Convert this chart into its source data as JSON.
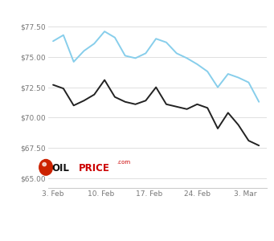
{
  "brent_x": [
    0,
    1,
    2,
    3,
    4,
    5,
    6,
    7,
    8,
    9,
    10,
    11,
    12,
    13,
    14,
    15,
    16,
    17,
    18,
    19,
    20
  ],
  "brent_y": [
    76.3,
    76.8,
    74.6,
    75.5,
    76.1,
    77.1,
    76.6,
    75.1,
    74.9,
    75.3,
    76.5,
    76.2,
    75.3,
    74.9,
    74.4,
    73.8,
    72.5,
    73.6,
    73.3,
    72.9,
    71.3
  ],
  "wti_x": [
    0,
    1,
    2,
    3,
    4,
    5,
    6,
    7,
    8,
    9,
    10,
    11,
    12,
    13,
    14,
    15,
    16,
    17,
    18,
    19,
    20
  ],
  "wti_y": [
    72.7,
    72.4,
    71.0,
    71.4,
    71.9,
    73.1,
    71.7,
    71.3,
    71.1,
    71.4,
    72.5,
    71.1,
    70.9,
    70.7,
    71.1,
    70.8,
    69.1,
    70.4,
    69.4,
    68.1,
    67.7
  ],
  "xtick_positions": [
    0,
    4.67,
    9.33,
    14,
    18.67
  ],
  "xtick_labels": [
    "3. Feb",
    "10. Feb",
    "17. Feb",
    "24. Feb",
    "3. Mar"
  ],
  "yticks": [
    65.0,
    67.5,
    70.0,
    72.5,
    75.0,
    77.5
  ],
  "ytick_labels": [
    "$65.00",
    "$67.50",
    "$70.00",
    "$72.50",
    "$75.00",
    "$77.50"
  ],
  "ylim": [
    64.2,
    78.5
  ],
  "xlim": [
    -0.5,
    20.8
  ],
  "brent_color": "#87CEEB",
  "wti_color": "#222222",
  "background_color": "#ffffff",
  "grid_color": "#e0e0e0",
  "tick_fontsize": 6.5,
  "tick_color": "#777777",
  "logo_o_color": "#cc0000",
  "logo_oil_color": "#111111",
  "logo_price_color": "#cc0000",
  "logo_com_color": "#cc0000"
}
